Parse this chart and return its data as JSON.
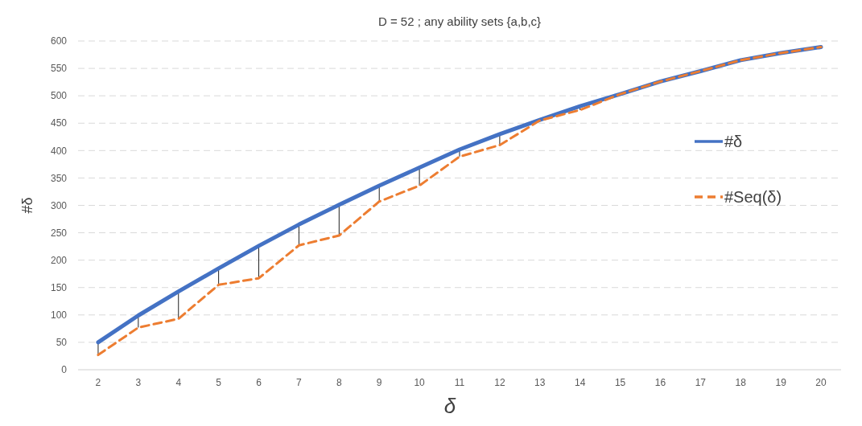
{
  "chart_data": {
    "type": "line",
    "title": "D = 52 ; any ability sets {a,b,c}",
    "xlabel": "δ",
    "ylabel": "#δ",
    "categories": [
      "2",
      "3",
      "4",
      "5",
      "6",
      "7",
      "8",
      "9",
      "10",
      "11",
      "12",
      "13",
      "14",
      "15",
      "16",
      "17",
      "18",
      "19",
      "20"
    ],
    "series": [
      {
        "name": "#δ",
        "color": "#4472c4",
        "line_style": "solid",
        "values": [
          50,
          99,
          143,
          185,
          226,
          265,
          301,
          336,
          369,
          402,
          430,
          456,
          481,
          503,
          526,
          545,
          565,
          578,
          589
        ]
      },
      {
        "name": "#Seq(δ)",
        "color": "#ed7d31",
        "line_style": "dashed",
        "values": [
          27,
          77,
          93,
          155,
          167,
          227,
          245,
          307,
          336,
          389,
          410,
          455,
          474,
          503,
          526,
          545,
          565,
          578,
          589
        ]
      }
    ],
    "ylim": [
      0,
      600
    ],
    "yticks": [
      0,
      50,
      100,
      150,
      200,
      250,
      300,
      350,
      400,
      450,
      500,
      550,
      600
    ],
    "grid": "y",
    "legend": "right",
    "marker": "none"
  }
}
